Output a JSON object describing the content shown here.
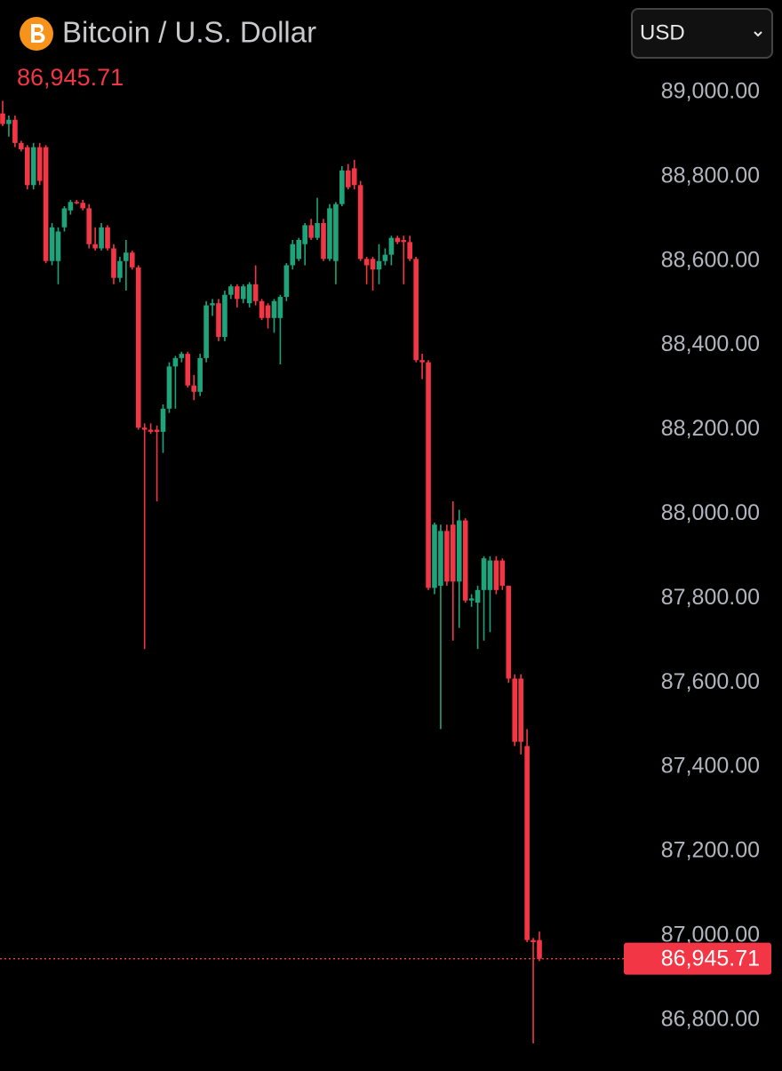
{
  "chart_data": {
    "type": "candlestick",
    "title": "Bitcoin / U.S. Dollar",
    "currency": "USD",
    "last_price": {
      "value": 86945.71,
      "label": "86,945.71"
    },
    "up_color": "#1fa37a",
    "down_color": "#f23645",
    "ylim": [
      86690,
      89219
    ],
    "yticks": [
      {
        "value": 89000,
        "label": "89,000.00"
      },
      {
        "value": 88800,
        "label": "88,800.00"
      },
      {
        "value": 88600,
        "label": "88,600.00"
      },
      {
        "value": 88400,
        "label": "88,400.00"
      },
      {
        "value": 88200,
        "label": "88,200.00"
      },
      {
        "value": 88000,
        "label": "88,000.00"
      },
      {
        "value": 87800,
        "label": "87,800.00"
      },
      {
        "value": 87600,
        "label": "87,600.00"
      },
      {
        "value": 87400,
        "label": "87,400.00"
      },
      {
        "value": 87200,
        "label": "87,200.00"
      },
      {
        "value": 87000,
        "label": "87,000.00"
      },
      {
        "value": 86800,
        "label": "86,800.00"
      }
    ],
    "open": [
      88950,
      88925,
      88935,
      88880,
      88870,
      88780,
      88870,
      88870,
      88600,
      88600,
      88680,
      88720,
      88740,
      88738,
      88725,
      88640,
      88630,
      88680,
      88630,
      88560,
      88600,
      88620,
      88585,
      88205,
      88200,
      88200,
      88195,
      88250,
      88350,
      88370,
      88380,
      88305,
      88290,
      88370,
      88495,
      88500,
      88420,
      88520,
      88540,
      88510,
      88500,
      88545,
      88505,
      88495,
      88465,
      88465,
      88515,
      88590,
      88605,
      88640,
      88685,
      88655,
      88690,
      88605,
      88600,
      88735,
      88815,
      88820,
      88780,
      88605,
      88605,
      88580,
      88600,
      88615,
      88655,
      88650,
      88645,
      88605,
      88365,
      88360,
      87825,
      87830,
      87960,
      87975,
      87840,
      87985,
      87795,
      87790,
      87820,
      87820,
      87890,
      87890,
      87830,
      87610,
      87610,
      87450,
      86990,
      86990
    ],
    "high": [
      88980,
      88945,
      88945,
      88885,
      88875,
      88880,
      88880,
      88875,
      88690,
      88680,
      88730,
      88745,
      88745,
      88745,
      88735,
      88680,
      88690,
      88685,
      88640,
      88610,
      88650,
      88625,
      88590,
      88215,
      88215,
      88210,
      88260,
      88360,
      88375,
      88385,
      88385,
      88330,
      88380,
      88505,
      88510,
      88510,
      88530,
      88545,
      88545,
      88545,
      88550,
      88590,
      88510,
      88500,
      88510,
      88520,
      88595,
      88650,
      88655,
      88690,
      88700,
      88750,
      88700,
      88735,
      88740,
      88825,
      88830,
      88840,
      88790,
      88610,
      88610,
      88640,
      88630,
      88660,
      88660,
      88660,
      88660,
      88610,
      88380,
      88365,
      87980,
      87975,
      87975,
      88030,
      88010,
      87990,
      87810,
      87830,
      87900,
      87900,
      87900,
      87895,
      87830,
      87620,
      87620,
      87490,
      86995,
      87010
    ],
    "low": [
      88920,
      88895,
      88870,
      88860,
      88770,
      88770,
      88780,
      88595,
      88590,
      88545,
      88670,
      88710,
      88735,
      88720,
      88630,
      88625,
      88625,
      88625,
      88545,
      88550,
      88530,
      88580,
      88200,
      87680,
      88190,
      88030,
      88145,
      88240,
      88250,
      88360,
      88300,
      88270,
      88280,
      88360,
      88470,
      88410,
      88410,
      88510,
      88490,
      88500,
      88490,
      88495,
      88460,
      88440,
      88430,
      88355,
      88505,
      88580,
      88600,
      88590,
      88650,
      88650,
      88600,
      88600,
      88545,
      88730,
      88770,
      88770,
      88600,
      88545,
      88530,
      88545,
      88590,
      88590,
      88640,
      88545,
      88600,
      88360,
      88320,
      87820,
      87810,
      87490,
      87830,
      87700,
      87730,
      87790,
      87780,
      87680,
      87700,
      87720,
      87810,
      87820,
      87600,
      87450,
      87430,
      86985,
      86745,
      86940
    ],
    "close": [
      88925,
      88935,
      88880,
      88865,
      88780,
      88870,
      88790,
      88600,
      88680,
      88670,
      88725,
      88740,
      88738,
      88725,
      88640,
      88630,
      88680,
      88630,
      88560,
      88600,
      88620,
      88585,
      88205,
      88200,
      88195,
      88195,
      88250,
      88350,
      88370,
      88380,
      88305,
      88290,
      88370,
      88495,
      88500,
      88420,
      88520,
      88540,
      88510,
      88540,
      88545,
      88505,
      88465,
      88465,
      88505,
      88515,
      88590,
      88640,
      88650,
      88685,
      88655,
      88690,
      88605,
      88725,
      88735,
      88815,
      88775,
      88780,
      88605,
      88590,
      88580,
      88600,
      88615,
      88655,
      88645,
      88645,
      88605,
      88365,
      88360,
      87825,
      87975,
      87960,
      87840,
      87840,
      87985,
      87795,
      87800,
      87820,
      87895,
      87890,
      87820,
      87830,
      87610,
      87460,
      87460,
      86990,
      86985,
      86945.71
    ]
  }
}
